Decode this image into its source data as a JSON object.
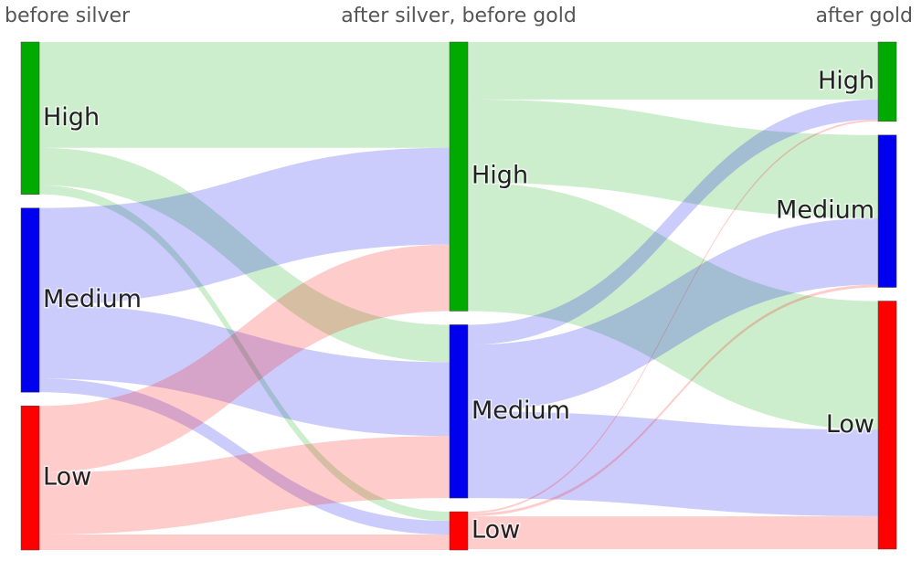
{
  "chart_data": {
    "type": "sankey",
    "columns": [
      {
        "title": "before silver",
        "nodes": [
          {
            "label": "High",
            "color": "#00aa00"
          },
          {
            "label": "Medium",
            "color": "#0000ee"
          },
          {
            "label": "Low",
            "color": "#ff0000"
          }
        ]
      },
      {
        "title": "after silver, before gold",
        "nodes": [
          {
            "label": "High",
            "color": "#00aa00"
          },
          {
            "label": "Medium",
            "color": "#0000ee"
          },
          {
            "label": "Low",
            "color": "#ff0000"
          }
        ]
      },
      {
        "title": "after gold",
        "nodes": [
          {
            "label": "High",
            "color": "#00aa00"
          },
          {
            "label": "Medium",
            "color": "#0000ee"
          },
          {
            "label": "Low",
            "color": "#ff0000"
          }
        ]
      }
    ],
    "links": [
      {
        "source": [
          0,
          0
        ],
        "target": [
          1,
          0
        ],
        "value": 116
      },
      {
        "source": [
          0,
          0
        ],
        "target": [
          1,
          1
        ],
        "value": 41
      },
      {
        "source": [
          0,
          0
        ],
        "target": [
          1,
          2
        ],
        "value": 10
      },
      {
        "source": [
          0,
          1
        ],
        "target": [
          1,
          0
        ],
        "value": 106
      },
      {
        "source": [
          0,
          1
        ],
        "target": [
          1,
          1
        ],
        "value": 81
      },
      {
        "source": [
          0,
          1
        ],
        "target": [
          1,
          2
        ],
        "value": 15
      },
      {
        "source": [
          0,
          2
        ],
        "target": [
          1,
          0
        ],
        "value": 73
      },
      {
        "source": [
          0,
          2
        ],
        "target": [
          1,
          1
        ],
        "value": 68
      },
      {
        "source": [
          0,
          2
        ],
        "target": [
          1,
          2
        ],
        "value": 17
      },
      {
        "source": [
          1,
          0
        ],
        "target": [
          2,
          0
        ],
        "value": 63
      },
      {
        "source": [
          1,
          0
        ],
        "target": [
          2,
          1
        ],
        "value": 91
      },
      {
        "source": [
          1,
          0
        ],
        "target": [
          2,
          2
        ],
        "value": 141
      },
      {
        "source": [
          1,
          1
        ],
        "target": [
          2,
          0
        ],
        "value": 22
      },
      {
        "source": [
          1,
          1
        ],
        "target": [
          2,
          1
        ],
        "value": 73
      },
      {
        "source": [
          1,
          1
        ],
        "target": [
          2,
          2
        ],
        "value": 95
      },
      {
        "source": [
          1,
          2
        ],
        "target": [
          2,
          0
        ],
        "value": 2
      },
      {
        "source": [
          1,
          2
        ],
        "target": [
          2,
          1
        ],
        "value": 3
      },
      {
        "source": [
          1,
          2
        ],
        "target": [
          2,
          2
        ],
        "value": 36
      }
    ],
    "link_opacity": 0.2
  }
}
